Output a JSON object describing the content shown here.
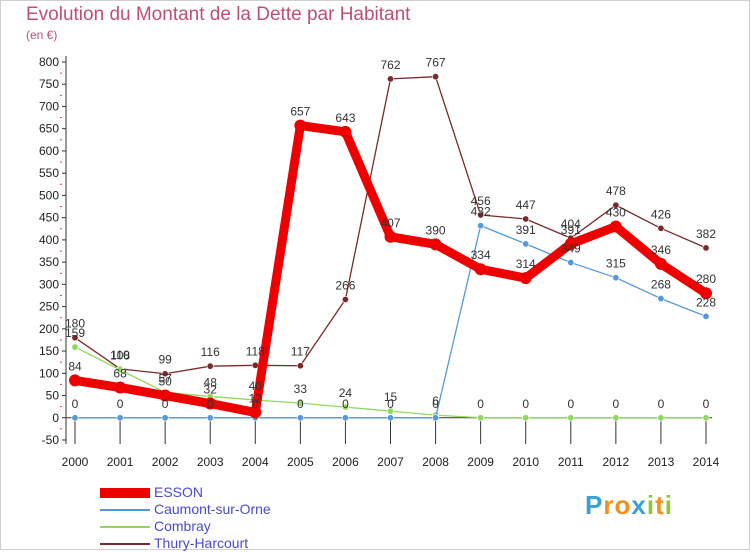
{
  "title": "Evolution du Montant de la Dette par Habitant",
  "subtitle": "(en €)",
  "logo": {
    "text": "Proxiti",
    "letters": [
      "P",
      "r",
      "o",
      "x",
      "i",
      "t",
      "i"
    ],
    "colors": [
      "#3aa0d8",
      "#f09020",
      "#f09020",
      "#3aa0d8",
      "#8cc830",
      "#f09020",
      "#8cc830"
    ]
  },
  "chart_data": {
    "type": "line",
    "x": [
      "2000",
      "2001",
      "2002",
      "2003",
      "2004",
      "2005",
      "2006",
      "2007",
      "2008",
      "2009",
      "2010",
      "2011",
      "2012",
      "2013",
      "2014"
    ],
    "y_ticks": [
      "800",
      "750",
      "700",
      "650",
      "600",
      "550",
      "500",
      "450",
      "400",
      "350",
      "300",
      "250",
      "200",
      "150",
      "100",
      "50",
      "0",
      "-50"
    ],
    "ylim": [
      -50,
      800
    ],
    "grid": false,
    "legend_position": "bottom-left",
    "series": [
      {
        "name": "ESSON",
        "color": "#ee0000",
        "values": [
          84,
          68,
          50,
          32,
          12,
          657,
          643,
          407,
          390,
          334,
          314,
          391,
          430,
          346,
          280
        ],
        "labels": [
          "84",
          "68",
          "50",
          "32",
          "12",
          "657",
          "643",
          "407",
          "390",
          "334",
          "314",
          "391",
          "430",
          "346",
          "280"
        ]
      },
      {
        "name": "Caumont-sur-Orne",
        "color": "#5599d8",
        "values": [
          0,
          0,
          0,
          0,
          0,
          0,
          0,
          0,
          0,
          432,
          391,
          349,
          315,
          268,
          228
        ],
        "labels": [
          "0",
          "0",
          "0",
          "0",
          "0",
          "0",
          "0",
          "0",
          "0",
          "432",
          "391",
          "349",
          "315",
          "268",
          "228"
        ]
      },
      {
        "name": "Combray",
        "color": "#90d860",
        "values": [
          159,
          108,
          57,
          48,
          40,
          33,
          24,
          15,
          6,
          0,
          0,
          0,
          0,
          0,
          0
        ],
        "labels": [
          "159",
          "108",
          "57",
          "48",
          "40",
          "33",
          "24",
          "15",
          "6",
          "0",
          "0",
          "0",
          "0",
          "0",
          "0"
        ]
      },
      {
        "name": "Thury-Harcourt",
        "color": "#7a2a2a",
        "values": [
          180,
          110,
          99,
          116,
          118,
          117,
          266,
          762,
          767,
          456,
          447,
          404,
          478,
          426,
          382
        ],
        "labels": [
          "180",
          "110",
          "99",
          "116",
          "118",
          "117",
          "266",
          "762",
          "767",
          "456",
          "447",
          "404",
          "478",
          "426",
          "382"
        ]
      }
    ]
  }
}
